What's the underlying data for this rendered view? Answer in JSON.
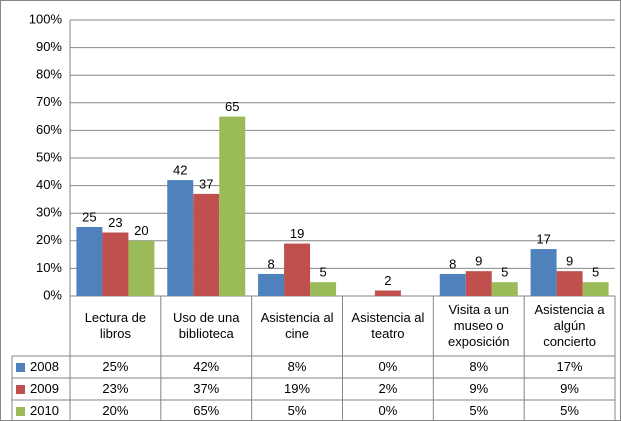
{
  "chart_data": {
    "type": "bar",
    "categories": [
      "Lectura de libros",
      "Uso de una biblioteca",
      "Asistencia al cine",
      "Asistencia al teatro",
      "Visita a un museo o exposición",
      "Asistencia a algún concierto"
    ],
    "series": [
      {
        "name": "2008",
        "color": "#4f81bd",
        "values": [
          25,
          42,
          8,
          0,
          8,
          17
        ],
        "value_labels": [
          "25%",
          "42%",
          "8%",
          "0%",
          "8%",
          "17%"
        ]
      },
      {
        "name": "2009",
        "color": "#c0504d",
        "values": [
          23,
          37,
          19,
          2,
          9,
          9
        ],
        "value_labels": [
          "23%",
          "37%",
          "19%",
          "2%",
          "9%",
          "9%"
        ]
      },
      {
        "name": "2010",
        "color": "#9bbb59",
        "values": [
          20,
          65,
          5,
          0,
          5,
          5
        ],
        "value_labels": [
          "20%",
          "65%",
          "5%",
          "0%",
          "5%",
          "5%"
        ]
      }
    ],
    "ylim": [
      0,
      100
    ],
    "yticks": [
      {
        "value": 0,
        "label": "0%"
      },
      {
        "value": 10,
        "label": "10%"
      },
      {
        "value": 20,
        "label": "20%"
      },
      {
        "value": 30,
        "label": "30%"
      },
      {
        "value": 40,
        "label": "40%"
      },
      {
        "value": 50,
        "label": "50%"
      },
      {
        "value": 60,
        "label": "60%"
      },
      {
        "value": 70,
        "label": "70%"
      },
      {
        "value": 80,
        "label": "80%"
      },
      {
        "value": 90,
        "label": "90%"
      },
      {
        "value": 100,
        "label": "100%"
      }
    ],
    "grid": true
  }
}
